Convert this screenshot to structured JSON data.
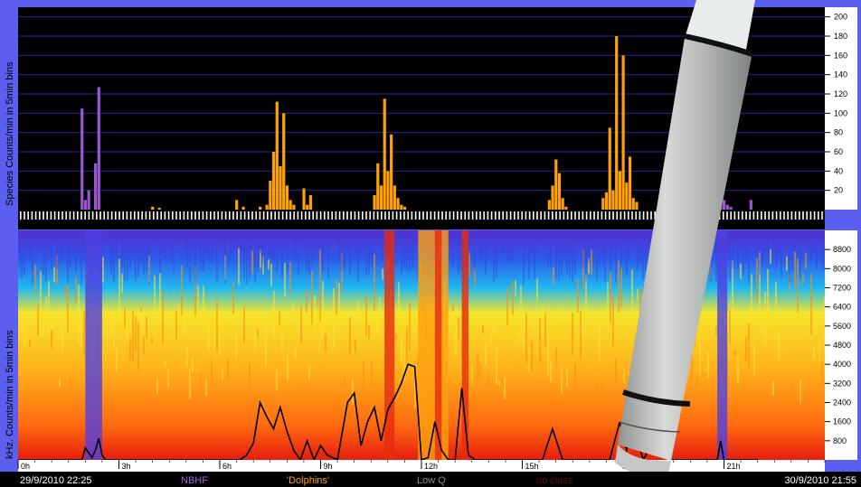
{
  "top_chart": {
    "ylabel": "Species  Counts/min  in 5min bins",
    "y_ticks": [
      20,
      40,
      60,
      80,
      100,
      120,
      140,
      160,
      180,
      200
    ],
    "ylim": [
      0,
      210
    ]
  },
  "bottom_chart": {
    "ylabel": "kHz. Counts/min  in 5min bins",
    "y_ticks": [
      800,
      1600,
      2400,
      3200,
      4000,
      4800,
      5600,
      6400,
      7200,
      8000,
      8800
    ],
    "ylim": [
      0,
      9600
    ]
  },
  "x_axis": {
    "tick_labels": [
      "0h",
      "3h",
      "6h",
      "9h",
      "12h",
      "15h",
      "18h",
      "21h"
    ],
    "start_label": "29/9/2010 22:25",
    "end_label": "30/9/2010 21:55"
  },
  "legend": [
    {
      "label": "NBHF",
      "color": "#a060e0"
    },
    {
      "label": "'Dolphins'",
      "color": "#ffa500"
    },
    {
      "label": "Low Q",
      "color": "#8a8a8a"
    },
    {
      "label": "no class",
      "color": "#6a1010"
    }
  ],
  "colors": {
    "nbhf": "#9a55d6",
    "dolphins": "#ffa200",
    "plot_bg": "#000000",
    "grid": "#1f2a8f"
  },
  "chart_data": [
    {
      "type": "bar",
      "ylabel": "Species  Counts/min  in 5min bins",
      "ylim": [
        0,
        210
      ],
      "x_unit": "hours",
      "series": [
        {
          "name": "NBHF",
          "color": "#9a55d6",
          "x": [
            1.9,
            2.0,
            2.1,
            2.3,
            2.4,
            20.8,
            20.9,
            21.0,
            21.1,
            21.2,
            21.8
          ],
          "values": [
            105,
            10,
            20,
            48,
            127,
            150,
            20,
            10,
            5,
            3,
            10
          ]
        },
        {
          "name": "'Dolphins'",
          "color": "#ffa200",
          "x": [
            4.0,
            4.2,
            6.5,
            6.7,
            7.2,
            7.4,
            7.5,
            7.6,
            7.7,
            7.8,
            7.9,
            8.0,
            8.1,
            8.2,
            8.5,
            8.6,
            8.7,
            10.6,
            10.7,
            10.8,
            10.9,
            11.0,
            11.1,
            11.2,
            11.3,
            11.4,
            11.5,
            15.8,
            15.9,
            16.0,
            16.1,
            16.2,
            16.3,
            17.4,
            17.5,
            17.6,
            17.7,
            17.8,
            17.9,
            18.0,
            18.1,
            18.2,
            18.3,
            18.4
          ],
          "values": [
            3,
            2,
            10,
            3,
            3,
            5,
            30,
            60,
            112,
            45,
            100,
            25,
            10,
            5,
            22,
            5,
            15,
            15,
            48,
            25,
            115,
            40,
            78,
            25,
            12,
            5,
            3,
            10,
            25,
            52,
            38,
            12,
            3,
            12,
            18,
            85,
            20,
            180,
            40,
            160,
            28,
            55,
            12,
            8
          ]
        }
      ]
    },
    {
      "type": "line",
      "ylabel": "kHz. Counts/min  in 5min bins",
      "ylim": [
        0,
        9600
      ],
      "x_unit": "hours",
      "series": [
        {
          "name": "kHz",
          "color": "#000000",
          "x": [
            0,
            1.9,
            2.0,
            2.1,
            2.2,
            2.3,
            2.4,
            2.5,
            2.6,
            3.0,
            4.0,
            6.6,
            6.8,
            7.0,
            7.2,
            7.4,
            7.6,
            7.8,
            8.0,
            8.2,
            8.4,
            8.6,
            8.8,
            9.0,
            9.2,
            9.5,
            9.8,
            10.0,
            10.2,
            10.4,
            10.6,
            10.8,
            11.0,
            11.2,
            11.4,
            11.6,
            11.8,
            12.0,
            12.2,
            12.4,
            12.6,
            12.8,
            13.0,
            13.2,
            13.4,
            13.6,
            13.8,
            14.0,
            15.0,
            15.6,
            15.9,
            16.2,
            16.6,
            17.2,
            17.6,
            17.9,
            18.1,
            18.3,
            18.6,
            18.9,
            19.1,
            19.4,
            20.0,
            20.8,
            20.9,
            21.0,
            21.2,
            22
          ],
          "values": [
            0,
            0,
            500,
            300,
            100,
            400,
            900,
            200,
            0,
            0,
            0,
            0,
            200,
            700,
            2400,
            1800,
            1300,
            2200,
            1200,
            400,
            0,
            800,
            0,
            600,
            200,
            0,
            2400,
            2800,
            600,
            1600,
            2200,
            800,
            2100,
            2600,
            3200,
            4000,
            3900,
            0,
            100,
            1600,
            400,
            0,
            0,
            3000,
            200,
            0,
            0,
            0,
            0,
            0,
            1300,
            0,
            0,
            0,
            0,
            1600,
            400,
            1400,
            0,
            800,
            200,
            0,
            0,
            0,
            800,
            0,
            0,
            0
          ]
        }
      ]
    }
  ]
}
